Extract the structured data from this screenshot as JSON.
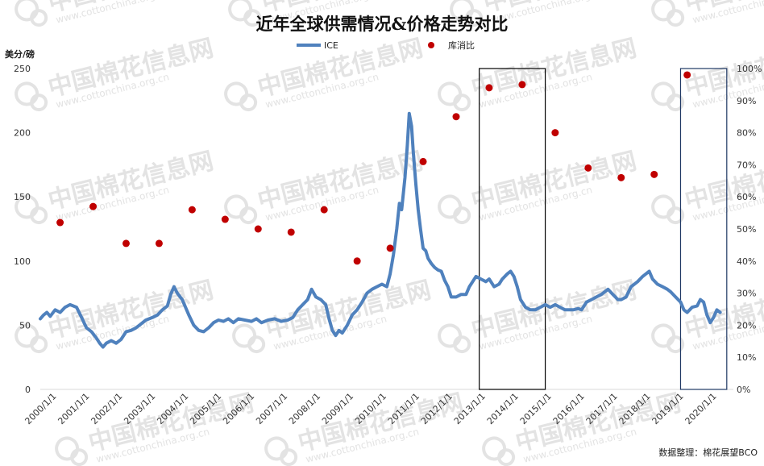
{
  "chart_data": {
    "type": "line",
    "title": "近年全球供需情况&价格走势对比",
    "ylabel_left": "美分/磅",
    "source_note": "数据整理：棉花展望BCO",
    "watermark": {
      "text": "中国棉花信息网",
      "url": "www.cottonchina.org.cn"
    },
    "legend": [
      "ICE",
      "库消比"
    ],
    "legend_position": "top-center",
    "y_left_ticks": [
      "0",
      "50",
      "100",
      "150",
      "200",
      "250"
    ],
    "y_left_lim": [
      0,
      250
    ],
    "y_right_ticks": [
      "0%",
      "10%",
      "20%",
      "30%",
      "40%",
      "50%",
      "60%",
      "70%",
      "80%",
      "90%",
      "100%"
    ],
    "y_right_lim": [
      0,
      1
    ],
    "x_labels": [
      "2000/1/1",
      "2001/1/1",
      "2002/1/1",
      "2003/1/1",
      "2004/1/1",
      "2005/1/1",
      "2006/1/1",
      "2007/1/1",
      "2008/1/1",
      "2009/1/1",
      "2010/1/1",
      "2011/1/1",
      "2012/1/1",
      "2013/1/1",
      "2014/1/1",
      "2015/1/1",
      "2016/1/1",
      "2017/1/1",
      "2018/1/1",
      "2019/1/1",
      "2020/1/1"
    ],
    "x_lim": [
      2000.0,
      2021.0
    ],
    "grid": false,
    "colors": {
      "ice": "#4f81bd",
      "ratio": "#c00000",
      "box_black": "#000000",
      "box_blue": "#1f3864"
    },
    "series": [
      {
        "name": "ICE",
        "type": "line",
        "axis": "left",
        "points": [
          [
            2000.0,
            55
          ],
          [
            2000.1,
            58
          ],
          [
            2000.2,
            60
          ],
          [
            2000.3,
            57
          ],
          [
            2000.45,
            62
          ],
          [
            2000.6,
            60
          ],
          [
            2000.75,
            64
          ],
          [
            2000.9,
            66
          ],
          [
            2001.0,
            65
          ],
          [
            2001.1,
            64
          ],
          [
            2001.25,
            56
          ],
          [
            2001.4,
            48
          ],
          [
            2001.55,
            45
          ],
          [
            2001.7,
            40
          ],
          [
            2001.8,
            36
          ],
          [
            2001.9,
            33
          ],
          [
            2002.0,
            36
          ],
          [
            2002.15,
            38
          ],
          [
            2002.3,
            36
          ],
          [
            2002.45,
            39
          ],
          [
            2002.6,
            45
          ],
          [
            2002.75,
            46
          ],
          [
            2002.9,
            48
          ],
          [
            2003.0,
            50
          ],
          [
            2003.2,
            54
          ],
          [
            2003.4,
            56
          ],
          [
            2003.55,
            58
          ],
          [
            2003.7,
            62
          ],
          [
            2003.85,
            65
          ],
          [
            2003.95,
            74
          ],
          [
            2004.05,
            80
          ],
          [
            2004.15,
            75
          ],
          [
            2004.3,
            70
          ],
          [
            2004.5,
            58
          ],
          [
            2004.65,
            50
          ],
          [
            2004.8,
            46
          ],
          [
            2004.95,
            45
          ],
          [
            2005.1,
            48
          ],
          [
            2005.25,
            52
          ],
          [
            2005.4,
            54
          ],
          [
            2005.55,
            53
          ],
          [
            2005.7,
            55
          ],
          [
            2005.85,
            52
          ],
          [
            2006.0,
            55
          ],
          [
            2006.2,
            54
          ],
          [
            2006.4,
            53
          ],
          [
            2006.55,
            55
          ],
          [
            2006.7,
            52
          ],
          [
            2006.9,
            54
          ],
          [
            2007.1,
            55
          ],
          [
            2007.3,
            53
          ],
          [
            2007.5,
            54
          ],
          [
            2007.65,
            56
          ],
          [
            2007.8,
            62
          ],
          [
            2007.95,
            66
          ],
          [
            2008.1,
            70
          ],
          [
            2008.22,
            78
          ],
          [
            2008.35,
            72
          ],
          [
            2008.5,
            70
          ],
          [
            2008.65,
            66
          ],
          [
            2008.75,
            55
          ],
          [
            2008.85,
            46
          ],
          [
            2008.95,
            42
          ],
          [
            2009.05,
            46
          ],
          [
            2009.15,
            44
          ],
          [
            2009.3,
            50
          ],
          [
            2009.45,
            58
          ],
          [
            2009.6,
            62
          ],
          [
            2009.75,
            68
          ],
          [
            2009.9,
            75
          ],
          [
            2010.05,
            78
          ],
          [
            2010.2,
            80
          ],
          [
            2010.35,
            82
          ],
          [
            2010.5,
            80
          ],
          [
            2010.6,
            90
          ],
          [
            2010.7,
            105
          ],
          [
            2010.8,
            125
          ],
          [
            2010.88,
            145
          ],
          [
            2010.95,
            140
          ],
          [
            2011.05,
            165
          ],
          [
            2011.12,
            190
          ],
          [
            2011.18,
            215
          ],
          [
            2011.25,
            205
          ],
          [
            2011.3,
            185
          ],
          [
            2011.38,
            160
          ],
          [
            2011.45,
            140
          ],
          [
            2011.52,
            125
          ],
          [
            2011.6,
            110
          ],
          [
            2011.68,
            108
          ],
          [
            2011.75,
            102
          ],
          [
            2011.85,
            98
          ],
          [
            2011.95,
            95
          ],
          [
            2012.05,
            93
          ],
          [
            2012.15,
            92
          ],
          [
            2012.25,
            85
          ],
          [
            2012.35,
            80
          ],
          [
            2012.45,
            72
          ],
          [
            2012.6,
            72
          ],
          [
            2012.75,
            74
          ],
          [
            2012.9,
            74
          ],
          [
            2013.0,
            80
          ],
          [
            2013.1,
            84
          ],
          [
            2013.2,
            88
          ],
          [
            2013.35,
            86
          ],
          [
            2013.5,
            84
          ],
          [
            2013.6,
            86
          ],
          [
            2013.75,
            80
          ],
          [
            2013.9,
            82
          ],
          [
            2014.0,
            86
          ],
          [
            2014.15,
            90
          ],
          [
            2014.25,
            92
          ],
          [
            2014.35,
            88
          ],
          [
            2014.45,
            80
          ],
          [
            2014.55,
            70
          ],
          [
            2014.7,
            64
          ],
          [
            2014.85,
            62
          ],
          [
            2015.0,
            62
          ],
          [
            2015.15,
            64
          ],
          [
            2015.3,
            66
          ],
          [
            2015.45,
            64
          ],
          [
            2015.6,
            66
          ],
          [
            2015.75,
            64
          ],
          [
            2015.9,
            62
          ],
          [
            2016.0,
            62
          ],
          [
            2016.15,
            62
          ],
          [
            2016.3,
            63
          ],
          [
            2016.4,
            62
          ],
          [
            2016.55,
            68
          ],
          [
            2016.7,
            70
          ],
          [
            2016.85,
            72
          ],
          [
            2017.0,
            74
          ],
          [
            2017.1,
            76
          ],
          [
            2017.2,
            78
          ],
          [
            2017.35,
            74
          ],
          [
            2017.5,
            70
          ],
          [
            2017.6,
            70
          ],
          [
            2017.75,
            72
          ],
          [
            2017.9,
            80
          ],
          [
            2018.0,
            82
          ],
          [
            2018.1,
            84
          ],
          [
            2018.25,
            88
          ],
          [
            2018.35,
            90
          ],
          [
            2018.45,
            92
          ],
          [
            2018.55,
            86
          ],
          [
            2018.7,
            82
          ],
          [
            2018.85,
            80
          ],
          [
            2019.0,
            78
          ],
          [
            2019.1,
            76
          ],
          [
            2019.25,
            72
          ],
          [
            2019.4,
            68
          ],
          [
            2019.5,
            62
          ],
          [
            2019.6,
            60
          ],
          [
            2019.75,
            64
          ],
          [
            2019.9,
            65
          ],
          [
            2020.0,
            70
          ],
          [
            2020.1,
            68
          ],
          [
            2020.2,
            58
          ],
          [
            2020.3,
            52
          ],
          [
            2020.4,
            56
          ],
          [
            2020.5,
            62
          ],
          [
            2020.6,
            60
          ]
        ]
      },
      {
        "name": "库消比",
        "type": "scatter",
        "axis": "right",
        "points": [
          [
            2000.6,
            0.52
          ],
          [
            2001.6,
            0.57
          ],
          [
            2002.6,
            0.455
          ],
          [
            2003.6,
            0.455
          ],
          [
            2004.6,
            0.56
          ],
          [
            2005.6,
            0.53
          ],
          [
            2006.6,
            0.5
          ],
          [
            2007.6,
            0.49
          ],
          [
            2008.6,
            0.56
          ],
          [
            2009.6,
            0.4
          ],
          [
            2010.6,
            0.44
          ],
          [
            2011.6,
            0.71
          ],
          [
            2012.6,
            0.85
          ],
          [
            2013.6,
            0.94
          ],
          [
            2014.6,
            0.95
          ],
          [
            2015.6,
            0.8
          ],
          [
            2016.6,
            0.69
          ],
          [
            2017.6,
            0.66
          ],
          [
            2018.6,
            0.67
          ],
          [
            2019.6,
            0.98
          ]
        ]
      }
    ],
    "highlight_boxes": [
      {
        "x_range": [
          2013.3,
          2015.3
        ],
        "color": "black"
      },
      {
        "x_range": [
          2019.4,
          2020.8
        ],
        "color": "blue"
      }
    ]
  }
}
